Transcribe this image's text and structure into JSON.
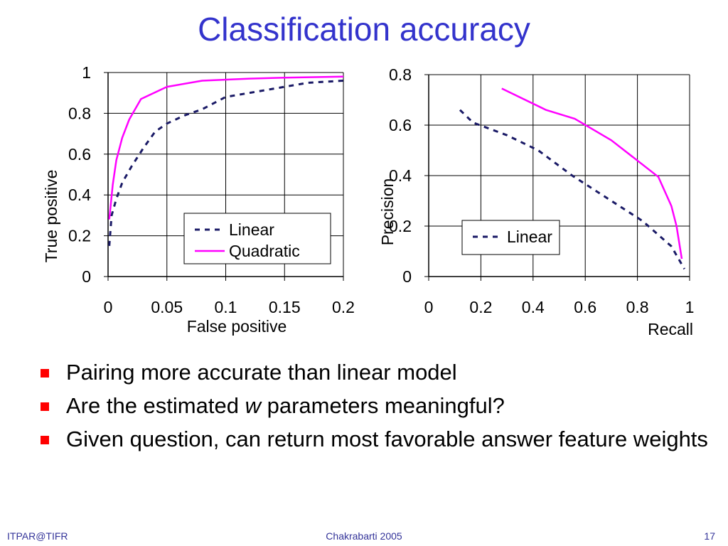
{
  "title": "Classification accuracy",
  "bullets": [
    {
      "text": "Pairing more accurate than linear model"
    },
    {
      "text_before": "Are the estimated ",
      "emph": "w",
      "text_after": " parameters meaningful?"
    },
    {
      "text": "Given question, can return most favorable answer feature weights"
    }
  ],
  "footer": {
    "left": "ITPAR@TIFR",
    "center": "Chakrabarti 2005",
    "right": "17"
  },
  "colors": {
    "title": "#3333cc",
    "linear": "#1a1a66",
    "quadratic": "#ff00ff",
    "bullet": "#ff0000",
    "footer": "#333399"
  },
  "chart_data": [
    {
      "type": "line",
      "xlabel": "False positive",
      "ylabel": "True positive",
      "xlim": [
        0,
        0.2
      ],
      "ylim": [
        0,
        1
      ],
      "xticks": [
        "0",
        "0.05",
        "0.1",
        "0.15",
        "0.2"
      ],
      "xtick_values": [
        0,
        0.05,
        0.1,
        0.15,
        0.2
      ],
      "yticks": [
        "0",
        "0.2",
        "0.4",
        "0.6",
        "0.8",
        "1"
      ],
      "ytick_values": [
        0,
        0.2,
        0.4,
        0.6,
        0.8,
        1
      ],
      "grid": true,
      "legend_position": "bottom-right",
      "series": [
        {
          "name": "Linear",
          "style": "dashed",
          "color": "#1a1a66",
          "points": [
            [
              0.001,
              0.15
            ],
            [
              0.003,
              0.3
            ],
            [
              0.007,
              0.38
            ],
            [
              0.012,
              0.46
            ],
            [
              0.02,
              0.54
            ],
            [
              0.03,
              0.63
            ],
            [
              0.04,
              0.71
            ],
            [
              0.05,
              0.75
            ],
            [
              0.065,
              0.79
            ],
            [
              0.08,
              0.82
            ],
            [
              0.1,
              0.88
            ],
            [
              0.12,
              0.9
            ],
            [
              0.15,
              0.93
            ],
            [
              0.17,
              0.95
            ],
            [
              0.2,
              0.96
            ]
          ]
        },
        {
          "name": "Quadratic",
          "style": "solid",
          "color": "#ff00ff",
          "points": [
            [
              0.001,
              0.28
            ],
            [
              0.004,
              0.45
            ],
            [
              0.007,
              0.57
            ],
            [
              0.012,
              0.68
            ],
            [
              0.018,
              0.77
            ],
            [
              0.028,
              0.87
            ],
            [
              0.05,
              0.93
            ],
            [
              0.08,
              0.96
            ],
            [
              0.12,
              0.97
            ],
            [
              0.15,
              0.975
            ],
            [
              0.2,
              0.98
            ]
          ]
        }
      ]
    },
    {
      "type": "line",
      "xlabel": "Recall",
      "ylabel": "Precision",
      "xlim": [
        0,
        1
      ],
      "ylim": [
        0,
        0.8
      ],
      "xticks": [
        "0",
        "0.2",
        "0.4",
        "0.6",
        "0.8",
        "1"
      ],
      "xtick_values": [
        0,
        0.2,
        0.4,
        0.6,
        0.8,
        1
      ],
      "yticks": [
        "0",
        "0.2",
        "0.4",
        "0.6",
        "0.8"
      ],
      "ytick_values": [
        0,
        0.2,
        0.4,
        0.6,
        0.8
      ],
      "grid": true,
      "legend_position": "center-right",
      "series": [
        {
          "name": "Linear",
          "style": "dashed",
          "color": "#1a1a66",
          "points": [
            [
              0.12,
              0.66
            ],
            [
              0.17,
              0.61
            ],
            [
              0.3,
              0.56
            ],
            [
              0.42,
              0.5
            ],
            [
              0.55,
              0.4
            ],
            [
              0.7,
              0.3
            ],
            [
              0.82,
              0.22
            ],
            [
              0.93,
              0.12
            ],
            [
              0.98,
              0.03
            ]
          ]
        },
        {
          "name": "",
          "style": "solid",
          "color": "#ff00ff",
          "points": [
            [
              0.28,
              0.745
            ],
            [
              0.45,
              0.66
            ],
            [
              0.56,
              0.625
            ],
            [
              0.7,
              0.54
            ],
            [
              0.88,
              0.395
            ],
            [
              0.93,
              0.28
            ],
            [
              0.95,
              0.2
            ],
            [
              0.97,
              0.07
            ]
          ]
        }
      ]
    }
  ]
}
